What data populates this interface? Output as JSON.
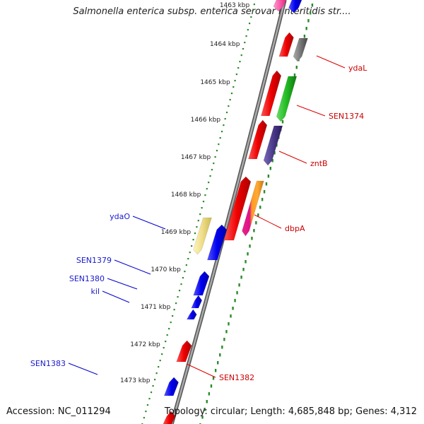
{
  "title": "Salmonella enterica subsp. enterica serovar Enteritidis str....",
  "accession": "Accession: NC_011294",
  "summary": "Topology: circular; Length: 4,685,848 bp; Genes: 4,312",
  "ticks": [
    "1463 kbp",
    "1464 kbp",
    "1465 kbp",
    "1466 kbp",
    "1467 kbp",
    "1468 kbp",
    "1469 kbp",
    "1470 kbp",
    "1471 kbp",
    "1472 kbp",
    "1473 kbp"
  ],
  "right_labels": [
    "ydaL",
    "SEN1374",
    "zntB",
    "dbpA",
    "SEN1382"
  ],
  "left_labels": [
    "ydaO",
    "SEN1379",
    "SEN1380",
    "kil",
    "SEN1383"
  ],
  "colors": {
    "red": "#ee0000",
    "blue": "#0000ee",
    "green": "#22bb22",
    "gray": "#777777",
    "purple": "#4a3a8a",
    "yellow": "#eedd88",
    "pink": "#ee2288",
    "orange": "#ff9922",
    "tick_green": "#2a8a2a",
    "backbone": "#888888"
  }
}
